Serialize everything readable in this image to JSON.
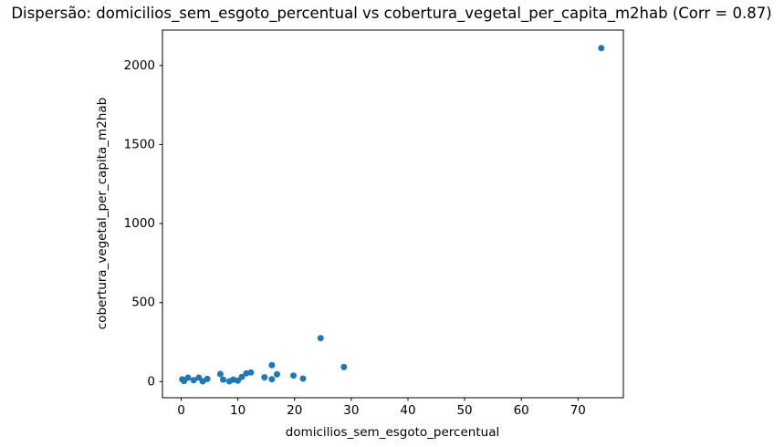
{
  "chart_data": {
    "type": "scatter",
    "title": "Dispersão: domicilios_sem_esgoto_percentual vs cobertura_vegetal_per_capita_m2hab (Corr = 0.87)",
    "xlabel": "domicilios_sem_esgoto_percentual",
    "ylabel": "cobertura_vegetal_per_capita_m2hab",
    "correlation": 0.87,
    "xlim": [
      -3.3,
      78.0
    ],
    "ylim": [
      -102,
      2224
    ],
    "xticks": [
      0,
      10,
      20,
      30,
      40,
      50,
      60,
      70
    ],
    "yticks": [
      0,
      500,
      1000,
      1500,
      2000
    ],
    "grid": false,
    "legend": "none",
    "marker_color": "#1f77b4",
    "marker_radius": 3.5,
    "axis_color": "#000000",
    "points": [
      [
        0.2,
        14
      ],
      [
        0.5,
        3
      ],
      [
        1.2,
        25
      ],
      [
        2.2,
        9
      ],
      [
        3.1,
        25
      ],
      [
        3.8,
        2
      ],
      [
        4.6,
        17
      ],
      [
        6.9,
        48
      ],
      [
        7.4,
        13
      ],
      [
        8.5,
        2
      ],
      [
        9.2,
        13
      ],
      [
        10.0,
        6
      ],
      [
        10.7,
        29
      ],
      [
        11.5,
        52
      ],
      [
        12.3,
        58
      ],
      [
        14.7,
        27
      ],
      [
        16.0,
        104
      ],
      [
        16.0,
        15
      ],
      [
        16.9,
        46
      ],
      [
        19.8,
        38
      ],
      [
        21.5,
        19
      ],
      [
        24.6,
        275
      ],
      [
        28.7,
        92
      ],
      [
        74.1,
        2110
      ]
    ]
  }
}
